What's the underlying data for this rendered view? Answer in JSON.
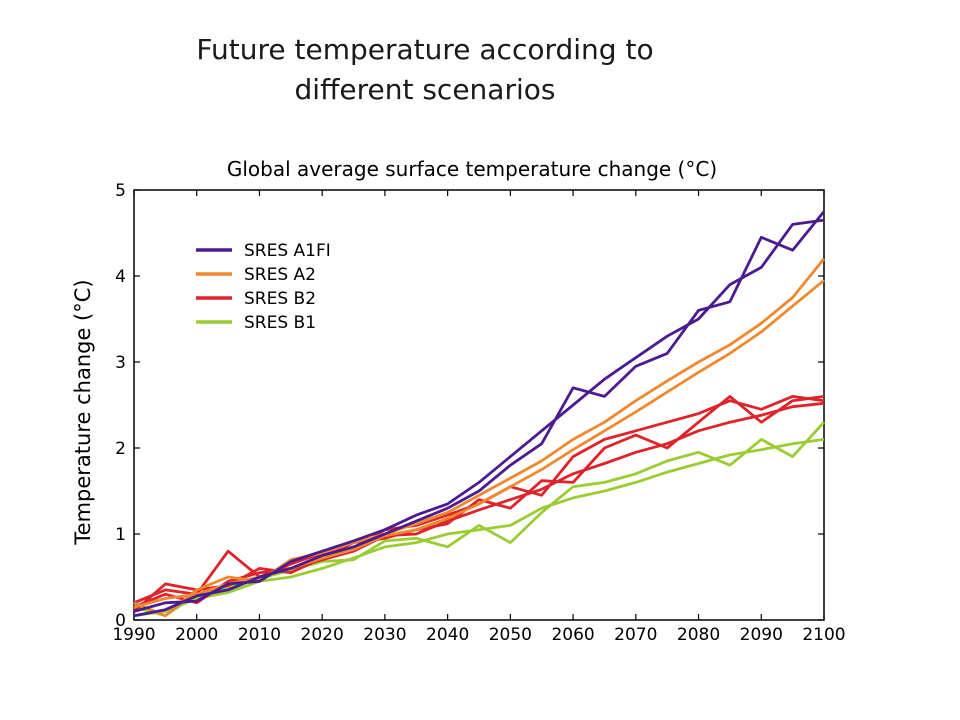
{
  "slide": {
    "title_line1": "Future temperature according to",
    "title_line2": "different scenarios"
  },
  "chart_data": {
    "type": "line",
    "title": "Global average surface temperature change (°C)",
    "xlabel": "",
    "ylabel": "Temperature change (°C)",
    "xlim": [
      1990,
      2100
    ],
    "ylim": [
      0,
      5
    ],
    "xticks": [
      "1990",
      "2000",
      "2010",
      "2020",
      "2030",
      "2040",
      "2050",
      "2060",
      "2070",
      "2080",
      "2090",
      "2100"
    ],
    "yticks": [
      "0",
      "1",
      "2",
      "3",
      "4",
      "5"
    ],
    "grid": false,
    "legend": "upper-left",
    "series": [
      {
        "name": "SRES B1",
        "color": "#9acd32",
        "runs": [
          {
            "x": [
              1990,
              1995,
              2000,
              2005,
              2010,
              2015,
              2020,
              2025,
              2030,
              2035,
              2040,
              2045,
              2050,
              2055,
              2060,
              2065,
              2070,
              2075,
              2080,
              2085,
              2090,
              2095,
              2100
            ],
            "y": [
              0.05,
              0.1,
              0.25,
              0.32,
              0.45,
              0.5,
              0.6,
              0.72,
              0.85,
              0.9,
              1.0,
              1.05,
              1.1,
              1.3,
              1.42,
              1.5,
              1.6,
              1.72,
              1.82,
              1.92,
              1.98,
              2.05,
              2.1
            ]
          },
          {
            "x": [
              1990,
              1995,
              2000,
              2005,
              2010,
              2015,
              2020,
              2025,
              2030,
              2035,
              2040,
              2045,
              2050,
              2055,
              2060,
              2065,
              2070,
              2075,
              2080,
              2085,
              2090,
              2095,
              2100
            ],
            "y": [
              0.15,
              0.05,
              0.3,
              0.38,
              0.48,
              0.58,
              0.68,
              0.7,
              0.92,
              0.95,
              0.85,
              1.1,
              0.9,
              1.25,
              1.55,
              1.6,
              1.7,
              1.85,
              1.95,
              1.8,
              2.1,
              1.9,
              2.3
            ]
          }
        ]
      },
      {
        "name": "SRES B2",
        "color": "#e0222b",
        "runs": [
          {
            "x": [
              1990,
              1995,
              2000,
              2005,
              2010,
              2015,
              2020,
              2025,
              2030,
              2035,
              2040,
              2045,
              2050,
              2055,
              2060,
              2065,
              2070,
              2075,
              2080,
              2085,
              2090,
              2095,
              2100
            ],
            "y": [
              0.15,
              0.3,
              0.2,
              0.45,
              0.55,
              0.6,
              0.7,
              0.8,
              0.98,
              1.0,
              1.15,
              1.28,
              1.4,
              1.52,
              1.7,
              1.82,
              1.95,
              2.05,
              2.2,
              2.3,
              2.38,
              2.48,
              2.52
            ]
          },
          {
            "x": [
              1990,
              1995,
              2000,
              2005,
              2010,
              2015,
              2020,
              2025,
              2030,
              2035,
              2040,
              2045,
              2050,
              2055,
              2060,
              2065,
              2070,
              2075,
              2080,
              2085,
              2090,
              2095,
              2100
            ],
            "y": [
              0.2,
              0.35,
              0.3,
              0.8,
              0.5,
              0.65,
              0.78,
              0.82,
              1.05,
              1.1,
              1.22,
              1.35,
              1.55,
              1.45,
              1.9,
              2.1,
              2.2,
              2.3,
              2.4,
              2.55,
              2.45,
              2.6,
              2.55
            ]
          },
          {
            "x": [
              1990,
              1995,
              2000,
              2005,
              2010,
              2015,
              2020,
              2025,
              2030,
              2035,
              2040,
              2045,
              2050,
              2055,
              2060,
              2065,
              2070,
              2075,
              2080,
              2085,
              2090,
              2095,
              2100
            ],
            "y": [
              0.1,
              0.42,
              0.35,
              0.4,
              0.6,
              0.55,
              0.72,
              0.9,
              0.95,
              1.05,
              1.12,
              1.4,
              1.3,
              1.62,
              1.6,
              2.0,
              2.15,
              2.0,
              2.3,
              2.6,
              2.3,
              2.55,
              2.6
            ]
          }
        ]
      },
      {
        "name": "SRES A2",
        "color": "#f0882e",
        "runs": [
          {
            "x": [
              1990,
              1995,
              2000,
              2005,
              2010,
              2015,
              2020,
              2025,
              2030,
              2035,
              2040,
              2045,
              2050,
              2055,
              2060,
              2065,
              2070,
              2075,
              2080,
              2085,
              2090,
              2095,
              2100
            ],
            "y": [
              0.15,
              0.25,
              0.3,
              0.42,
              0.5,
              0.6,
              0.72,
              0.82,
              0.98,
              1.05,
              1.18,
              1.35,
              1.55,
              1.75,
              1.98,
              2.2,
              2.42,
              2.65,
              2.88,
              3.1,
              3.35,
              3.65,
              3.95
            ]
          },
          {
            "x": [
              1990,
              1995,
              2000,
              2005,
              2010,
              2015,
              2020,
              2025,
              2030,
              2035,
              2040,
              2045,
              2050,
              2055,
              2060,
              2065,
              2070,
              2075,
              2080,
              2085,
              2090,
              2095,
              2100
            ],
            "y": [
              0.2,
              0.05,
              0.35,
              0.5,
              0.45,
              0.7,
              0.78,
              0.9,
              1.0,
              1.12,
              1.25,
              1.45,
              1.65,
              1.85,
              2.1,
              2.3,
              2.55,
              2.78,
              3.0,
              3.2,
              3.45,
              3.75,
              4.2
            ]
          }
        ]
      },
      {
        "name": "SRES A1FI",
        "color": "#4b1c91",
        "runs": [
          {
            "x": [
              1990,
              1995,
              2000,
              2005,
              2010,
              2015,
              2020,
              2025,
              2030,
              2035,
              2040,
              2045,
              2050,
              2055,
              2060,
              2065,
              2070,
              2075,
              2080,
              2085,
              2090,
              2095,
              2100
            ],
            "y": [
              0.05,
              0.12,
              0.28,
              0.35,
              0.5,
              0.6,
              0.75,
              0.85,
              1.0,
              1.15,
              1.3,
              1.5,
              1.8,
              2.05,
              2.7,
              2.6,
              2.95,
              3.1,
              3.6,
              3.7,
              4.45,
              4.3,
              4.75
            ]
          },
          {
            "x": [
              1990,
              1995,
              2000,
              2005,
              2010,
              2015,
              2020,
              2025,
              2030,
              2035,
              2040,
              2045,
              2050,
              2055,
              2060,
              2065,
              2070,
              2075,
              2080,
              2085,
              2090,
              2095,
              2100
            ],
            "y": [
              0.1,
              0.2,
              0.22,
              0.42,
              0.45,
              0.68,
              0.8,
              0.92,
              1.05,
              1.22,
              1.35,
              1.6,
              1.9,
              2.2,
              2.5,
              2.8,
              3.05,
              3.3,
              3.5,
              3.9,
              4.1,
              4.6,
              4.65
            ]
          }
        ]
      }
    ]
  }
}
